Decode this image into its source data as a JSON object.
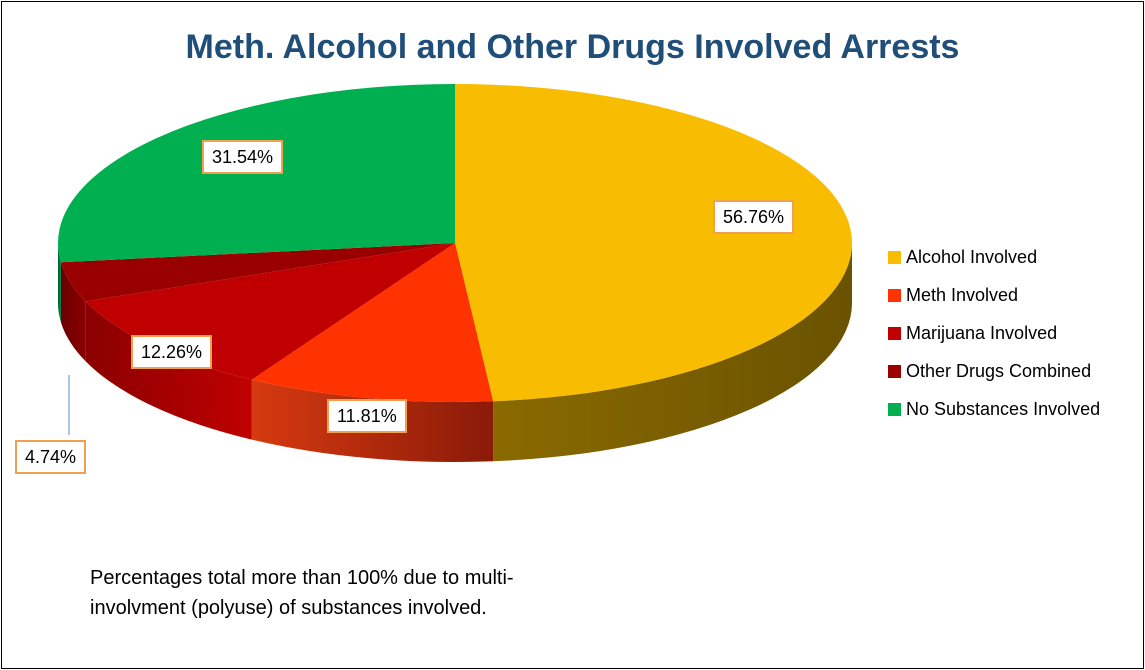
{
  "chart_data": {
    "type": "pie",
    "title": "Meth. Alcohol and Other Drugs Involved Arrests",
    "slices": [
      {
        "label": "Alcohol Involved",
        "value": 56.76,
        "value_label": "56.76%",
        "color": "#f8bd00"
      },
      {
        "label": "Meth Involved",
        "value": 11.81,
        "value_label": "11.81%",
        "color": "#ff3300"
      },
      {
        "label": "Marijuana Involved",
        "value": 12.26,
        "value_label": "12.26%",
        "color": "#c00000"
      },
      {
        "label": "Other Drugs Combined",
        "value": 4.74,
        "value_label": "4.74%",
        "color": "#990000"
      },
      {
        "label": "No Substances Involved",
        "value": 31.54,
        "value_label": "31.54%",
        "color": "#00b050"
      }
    ],
    "legend_position": "right",
    "style": "3d"
  },
  "footnote": "Percentages total more than 100% due to multi-involvment (polyuse) of substances involved.",
  "colors": {
    "title": "#1f4e79",
    "label_border": "#f0a050"
  }
}
